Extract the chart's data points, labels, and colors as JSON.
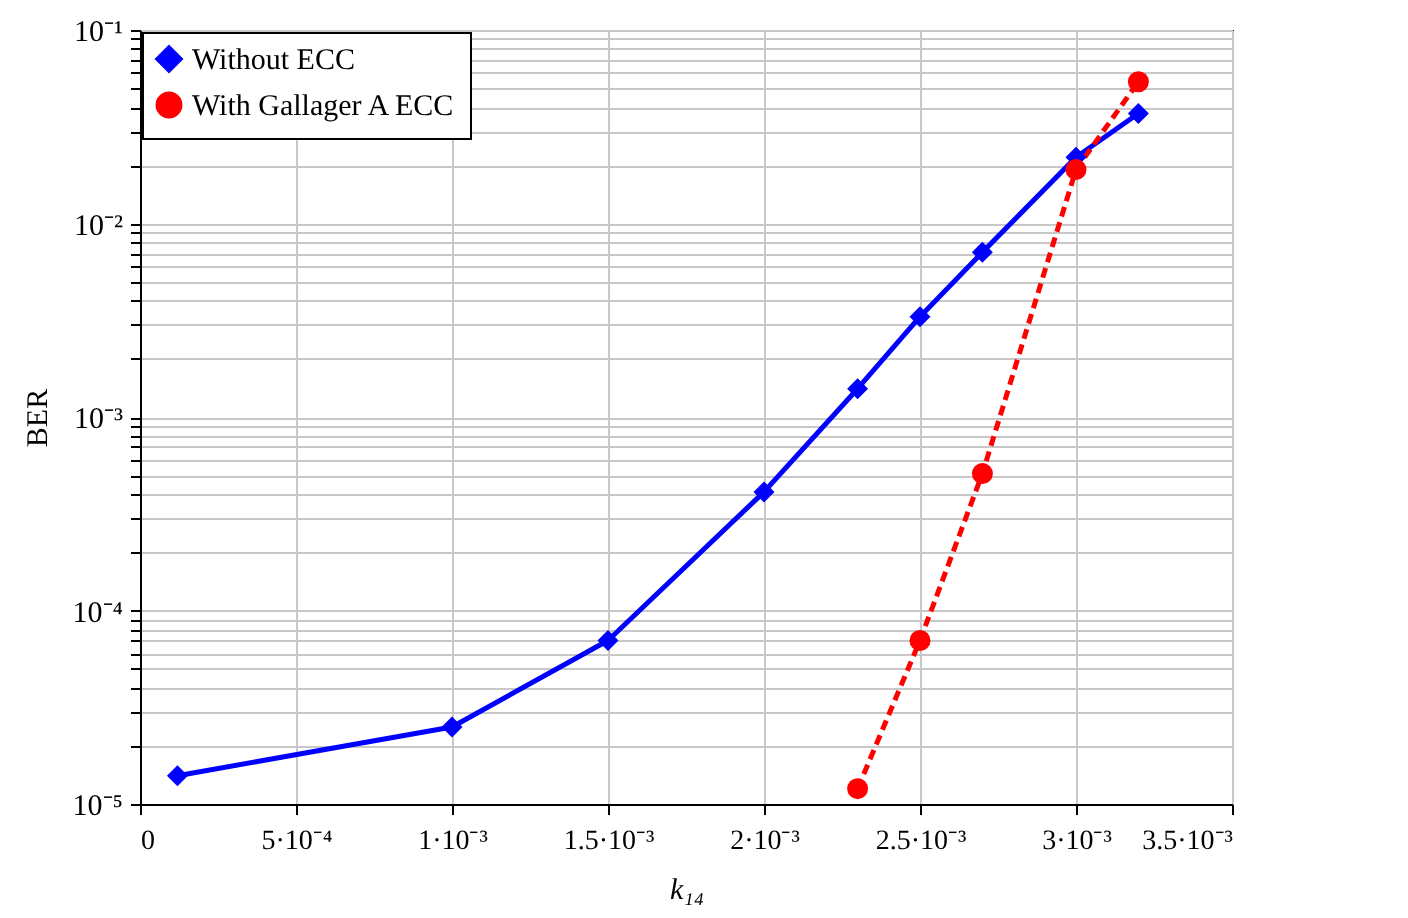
{
  "chart_data": {
    "type": "line",
    "xlabel": "k₁₄",
    "ylabel": "BER",
    "log": "y",
    "grid": true,
    "legend": "top left",
    "xlim": [
      0,
      0.0035
    ],
    "ylim": [
      1e-05,
      0.1
    ],
    "xticks": [
      0,
      {
        "value": 0.0005,
        "label": "5·10⁻⁴"
      },
      {
        "value": 0.001,
        "label": "1·10⁻³"
      },
      {
        "value": 0.0015,
        "label": "1.5·10⁻³"
      },
      {
        "value": 0.002,
        "label": "2·10⁻³"
      },
      {
        "value": 0.0025,
        "label": "2.5·10⁻³"
      },
      {
        "value": 0.003,
        "label": "3·10⁻³"
      },
      {
        "value": 0.0035,
        "label": "3.5·10⁻³"
      }
    ],
    "yticks": [
      {
        "value": 1e-05,
        "label": "10⁻⁵"
      },
      {
        "value": 2e-05,
        "label": null
      },
      {
        "value": 3e-05,
        "label": null
      },
      {
        "value": 4e-05,
        "label": null
      },
      {
        "value": 5e-05,
        "label": null
      },
      {
        "value": 6e-05,
        "label": null
      },
      {
        "value": 7e-05,
        "label": null
      },
      {
        "value": 8e-05,
        "label": null
      },
      {
        "value": 9e-05,
        "label": null
      },
      {
        "value": 0.0001,
        "label": "10⁻⁴"
      },
      {
        "value": 0.0002,
        "label": null
      },
      {
        "value": 0.0003,
        "label": null
      },
      {
        "value": 0.0004,
        "label": null
      },
      {
        "value": 0.0005,
        "label": null
      },
      {
        "value": 0.0006,
        "label": null
      },
      {
        "value": 0.0007,
        "label": null
      },
      {
        "value": 0.0008,
        "label": null
      },
      {
        "value": 0.0009,
        "label": null
      },
      {
        "value": 0.001,
        "label": "10⁻³"
      },
      {
        "value": 0.002,
        "label": null
      },
      {
        "value": 0.003,
        "label": null
      },
      {
        "value": 0.004,
        "label": null
      },
      {
        "value": 0.005,
        "label": null
      },
      {
        "value": 0.006,
        "label": null
      },
      {
        "value": 0.007,
        "label": null
      },
      {
        "value": 0.008,
        "label": null
      },
      {
        "value": 0.009,
        "label": null
      },
      {
        "value": 0.01,
        "label": "10⁻²"
      },
      {
        "value": 0.02,
        "label": null
      },
      {
        "value": 0.03,
        "label": null
      },
      {
        "value": 0.04,
        "label": null
      },
      {
        "value": 0.05,
        "label": null
      },
      {
        "value": 0.06,
        "label": null
      },
      {
        "value": 0.07,
        "label": null
      },
      {
        "value": 0.08,
        "label": null
      },
      {
        "value": 0.09,
        "label": null
      },
      {
        "value": 0.1,
        "label": "10⁻¹"
      }
    ],
    "series": [
      {
        "name": "Without ECC",
        "color": "#0000ff",
        "marker": "diamond",
        "line_style": "solid",
        "x": [
          0.00012,
          0.001,
          0.0015,
          0.002,
          0.0023,
          0.0025,
          0.0027,
          0.003,
          0.0032
        ],
        "values": [
          1.4e-05,
          2.5e-05,
          7e-05,
          0.00041,
          0.0014,
          0.0033,
          0.0071,
          0.022,
          0.037
        ]
      },
      {
        "name": "With Gallager A ECC",
        "color": "#ff0000",
        "marker": "circle",
        "line_style": "dashed",
        "x": [
          0.0023,
          0.0025,
          0.0027,
          0.003,
          0.0032
        ],
        "values": [
          1.2e-05,
          7e-05,
          0.00051,
          0.019,
          0.054
        ]
      }
    ]
  }
}
